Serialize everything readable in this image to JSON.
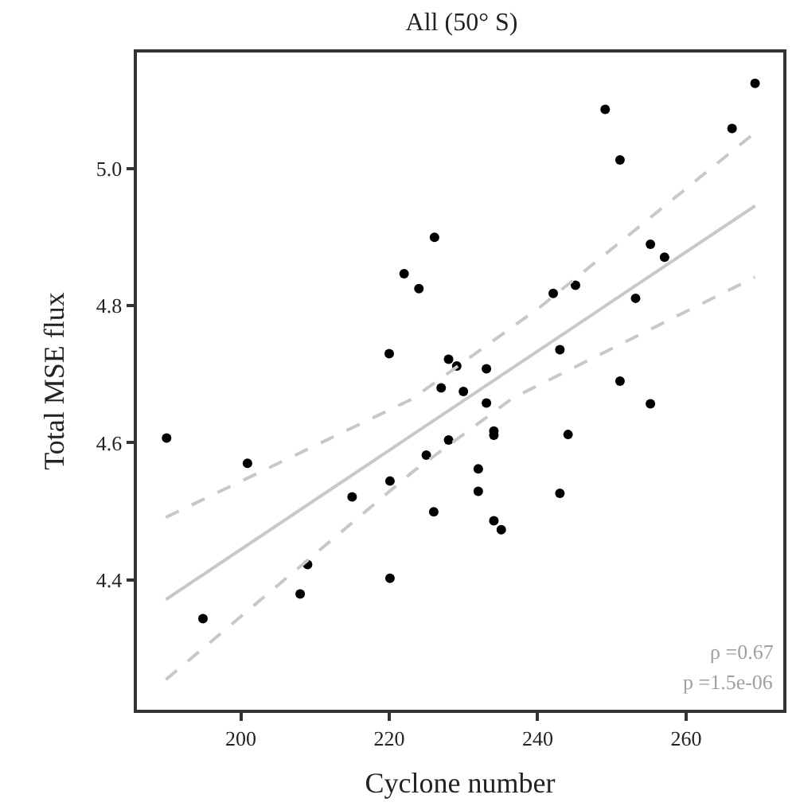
{
  "chart_data": {
    "type": "scatter",
    "title": "All (50° S)",
    "xlabel": "Cyclone number",
    "ylabel": "Total MSE flux",
    "xlim": [
      186,
      273.1
    ],
    "xticks": [
      200,
      220,
      240,
      260
    ],
    "ylim": [
      4.21,
      5.17
    ],
    "yticks": [
      4.4,
      4.6,
      4.8,
      {
        "value": 5.0,
        "label": "5.0"
      }
    ],
    "annotations": [
      "ρ =0.67",
      "p =1.5e-06"
    ],
    "series": [
      {
        "marker": "circle",
        "color": "#000000",
        "x": [
          190.0,
          200.9,
          215.0,
          220.1,
          209.0,
          208.0,
          194.9,
          220.1,
          226.0,
          225.0,
          228.0,
          227.0,
          230.0,
          233.1,
          229.1,
          233.1,
          234.1,
          234.1,
          232.0,
          232.0,
          234.1,
          235.1,
          243.0,
          244.1,
          251.1,
          255.2,
          220.0,
          222.0,
          224.0,
          226.1,
          228.0,
          242.1,
          245.1,
          243.0,
          249.1,
          251.1,
          255.2,
          257.1,
          253.2,
          266.2,
          269.3
        ],
        "values": [
          4.607,
          4.57,
          4.521,
          4.544,
          4.422,
          4.379,
          4.343,
          4.402,
          4.499,
          4.582,
          4.604,
          4.68,
          4.675,
          4.658,
          4.712,
          4.708,
          4.617,
          4.611,
          4.562,
          4.529,
          4.486,
          4.473,
          4.526,
          4.612,
          4.69,
          4.657,
          4.73,
          4.847,
          4.825,
          4.9,
          4.722,
          4.818,
          4.83,
          4.736,
          5.087,
          5.013,
          4.89,
          4.871,
          4.811,
          5.059,
          5.125
        ]
      },
      {
        "type": "line",
        "color": "#c8c8c8",
        "line_style": "solid",
        "x": [
          189.9,
          269.3
        ],
        "values": [
          4.371,
          4.946
        ]
      },
      {
        "type": "line",
        "color": "#c8c8c8",
        "line_style": "dashed",
        "x": [
          189.9,
          223.1,
          240.2,
          269.3
        ],
        "values": [
          4.491,
          4.664,
          4.797,
          5.053
        ]
      },
      {
        "type": "line",
        "color": "#c8c8c8",
        "line_style": "dashed",
        "x": [
          189.9,
          223.1,
          236.6,
          269.3
        ],
        "values": [
          4.254,
          4.557,
          4.665,
          4.842
        ]
      }
    ]
  }
}
